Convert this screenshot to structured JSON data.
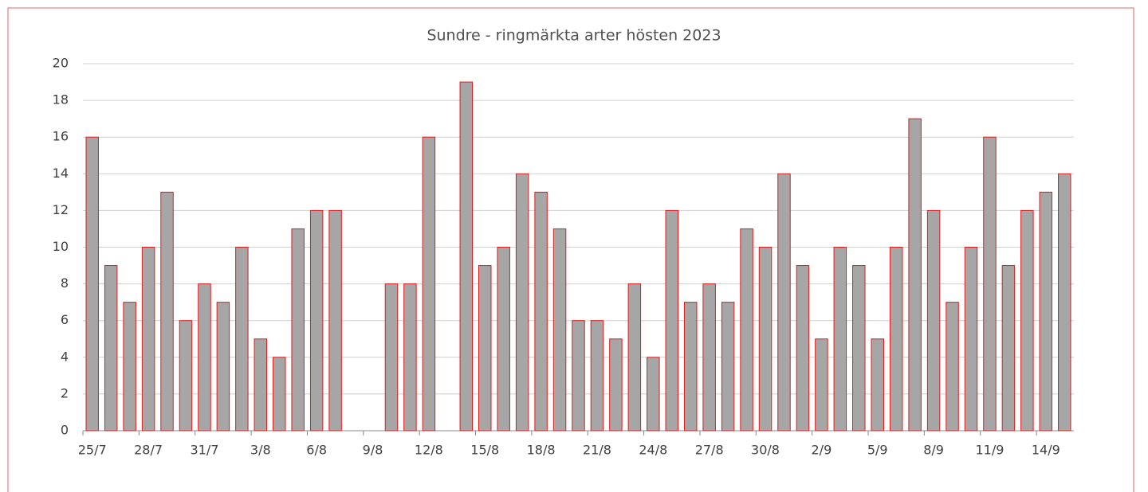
{
  "chart_data": {
    "type": "bar",
    "title": "Sundre - ringmärkta arter hösten 2023",
    "categories": [
      "25/7",
      null,
      null,
      "28/7",
      null,
      null,
      "31/7",
      null,
      null,
      "3/8",
      null,
      null,
      "6/8",
      null,
      null,
      "9/8",
      null,
      null,
      "12/8",
      null,
      null,
      "15/8",
      null,
      null,
      "18/8",
      null,
      null,
      "21/8",
      null,
      null,
      "24/8",
      null,
      null,
      "27/8",
      null,
      null,
      "30/8",
      null,
      null,
      "2/9",
      null,
      null,
      "5/9",
      null,
      null,
      "8/9",
      null,
      null,
      "11/9",
      null,
      null,
      "14/9",
      null
    ],
    "values": [
      16,
      9,
      7,
      10,
      13,
      6,
      8,
      7,
      10,
      5,
      4,
      11,
      12,
      12,
      null,
      null,
      8,
      8,
      16,
      null,
      19,
      9,
      10,
      14,
      13,
      11,
      6,
      6,
      5,
      8,
      4,
      12,
      7,
      8,
      7,
      11,
      10,
      14,
      9,
      5,
      10,
      9,
      5,
      10,
      17,
      12,
      7,
      10,
      16,
      9,
      12,
      13,
      14
    ],
    "color": "#a6a6a6",
    "edge_color": "#e01b1b",
    "ylim": [
      0,
      20
    ],
    "yticks": [
      0,
      2,
      4,
      6,
      8,
      10,
      12,
      14,
      16,
      18,
      20
    ],
    "grid": true
  }
}
